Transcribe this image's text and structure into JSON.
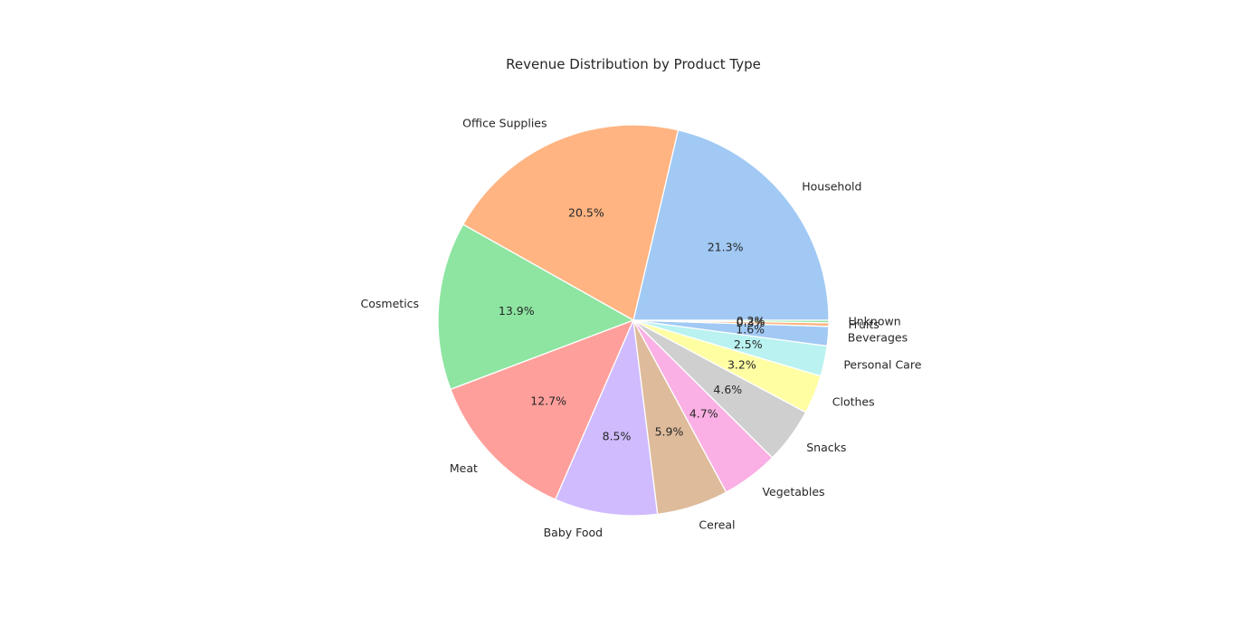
{
  "chart_data": {
    "type": "pie",
    "title": "Revenue Distribution by Product Type",
    "categories": [
      "Household",
      "Office Supplies",
      "Cosmetics",
      "Meat",
      "Baby Food",
      "Cereal",
      "Vegetables",
      "Snacks",
      "Clothes",
      "Personal Care",
      "Beverages",
      "Fruits",
      "Unknown"
    ],
    "values": [
      21.3,
      20.5,
      13.9,
      12.7,
      8.5,
      5.9,
      4.7,
      4.6,
      3.2,
      2.5,
      1.6,
      0.3,
      0.2
    ],
    "value_labels": [
      "21.3%",
      "20.5%",
      "13.9%",
      "12.7%",
      "8.5%",
      "5.9%",
      "4.7%",
      "4.6%",
      "3.2%",
      "2.5%",
      "1.6%",
      "0.3%",
      "0.2%"
    ],
    "colors": [
      "#a1c9f4",
      "#ffb482",
      "#8de5a1",
      "#ff9f9b",
      "#d0bbff",
      "#debb9b",
      "#fab0e4",
      "#cfcfcf",
      "#fffea3",
      "#b9f2f0",
      "#a1c9f4",
      "#ffb482",
      "#8de5a1"
    ],
    "start_angle": 0,
    "direction": "counterclockwise"
  }
}
